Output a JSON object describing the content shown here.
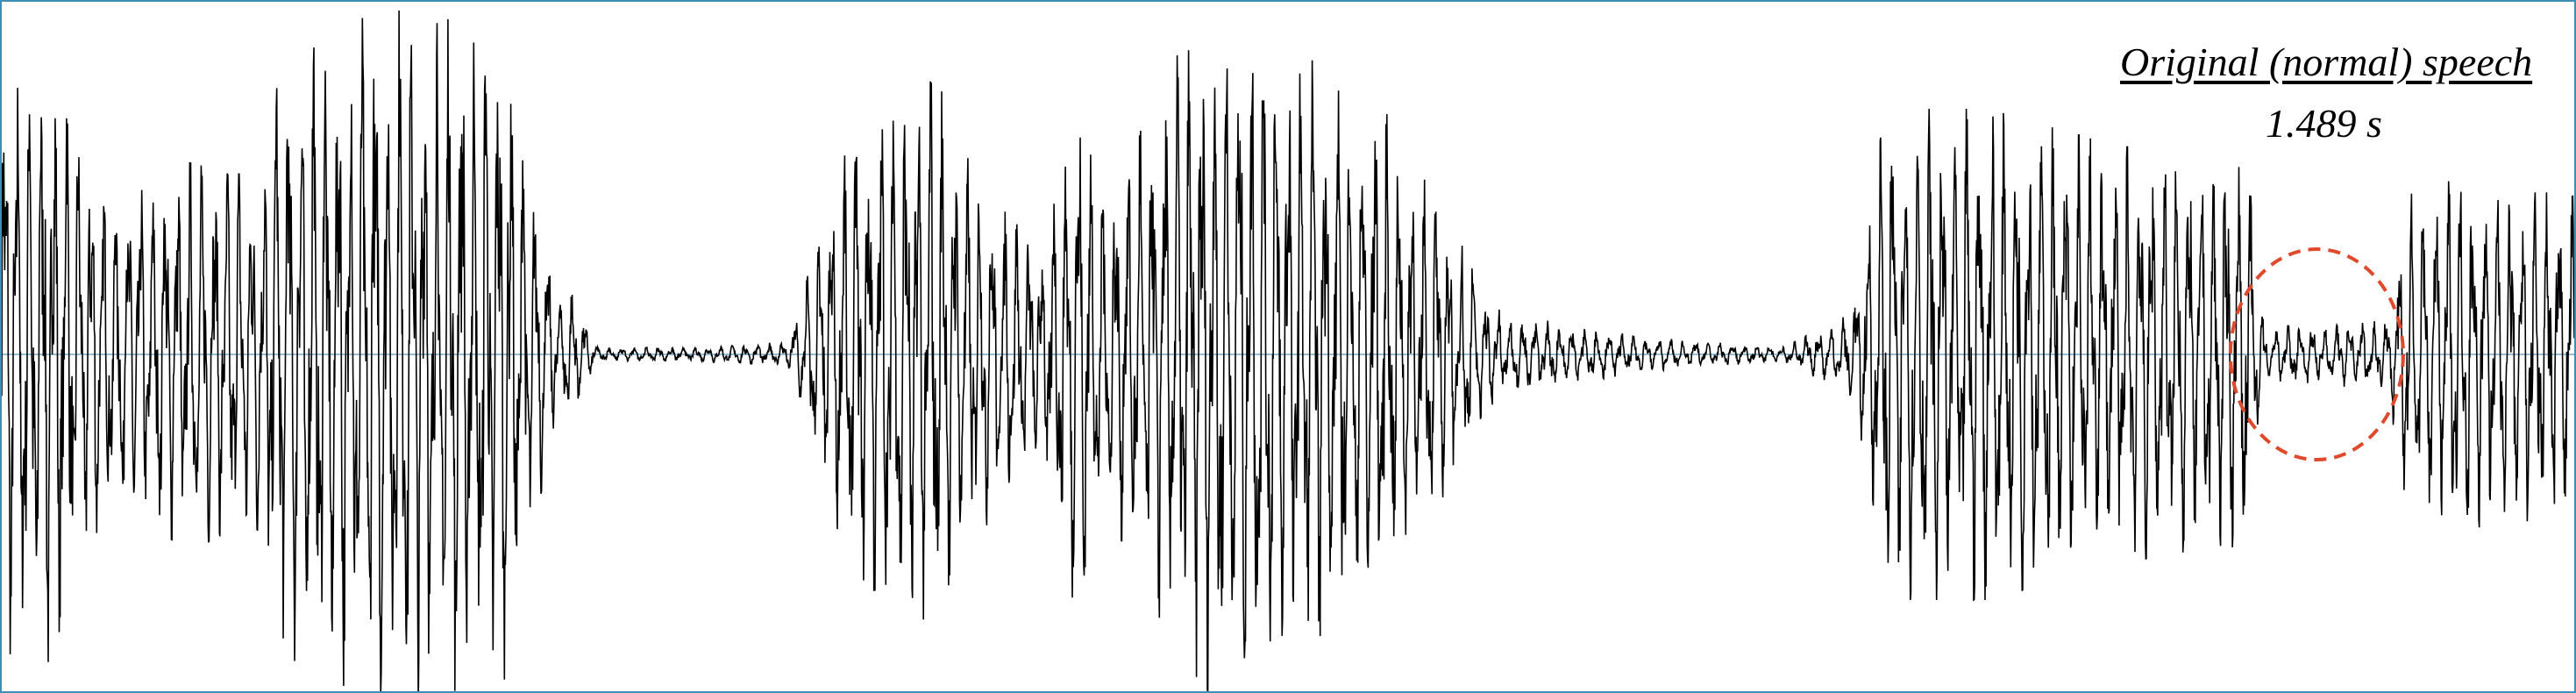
{
  "chart_data": {
    "type": "line",
    "title": "Original (normal) speech",
    "duration_label": "1.489 s",
    "duration_s": 1.489,
    "xlabel": "",
    "ylabel": "",
    "xlim": [
      0,
      1.489
    ],
    "ylim": [
      -1,
      1
    ],
    "grid": false,
    "series": [
      {
        "values_note": "",
        "envelope": {
          "t": [
            0,
            0.03,
            0.06,
            0.09,
            0.105,
            0.15,
            0.16,
            0.2,
            0.25,
            0.29,
            0.32,
            0.33,
            0.345,
            0.4,
            0.44,
            0.455,
            0.49,
            0.52,
            0.54,
            0.56,
            0.6,
            0.625,
            0.64,
            0.68,
            0.705,
            0.74,
            0.8,
            0.87,
            0.89,
            0.95,
            1.03,
            1.065,
            1.075,
            1.09,
            1.15,
            1.22,
            1.28,
            1.3,
            1.31,
            1.35,
            1.38,
            1.39,
            1.42,
            1.46,
            1.489
          ],
          "amplitude": [
            0.85,
            0.88,
            0.45,
            0.5,
            0.55,
            0.5,
            0.85,
            0.95,
            1.0,
            0.95,
            0.2,
            0.18,
            0.02,
            0.02,
            0.03,
            0.04,
            0.6,
            0.75,
            0.8,
            0.55,
            0.3,
            0.8,
            0.45,
            0.85,
            1.0,
            0.9,
            0.7,
            0.1,
            0.1,
            0.05,
            0.02,
            0.1,
            0.2,
            0.7,
            0.7,
            0.6,
            0.55,
            0.55,
            0.08,
            0.09,
            0.1,
            0.45,
            0.5,
            0.48,
            0.45
          ]
        },
        "color": "#000000",
        "silence_color": "#2a7fa8"
      }
    ],
    "annotations": [
      {
        "type": "ellipse",
        "description": "red-dashed-circle",
        "t_range": [
          1.29,
          1.39
        ],
        "amplitude_range": [
          -0.3,
          0.3
        ],
        "color": "#e04a2c"
      }
    ]
  }
}
